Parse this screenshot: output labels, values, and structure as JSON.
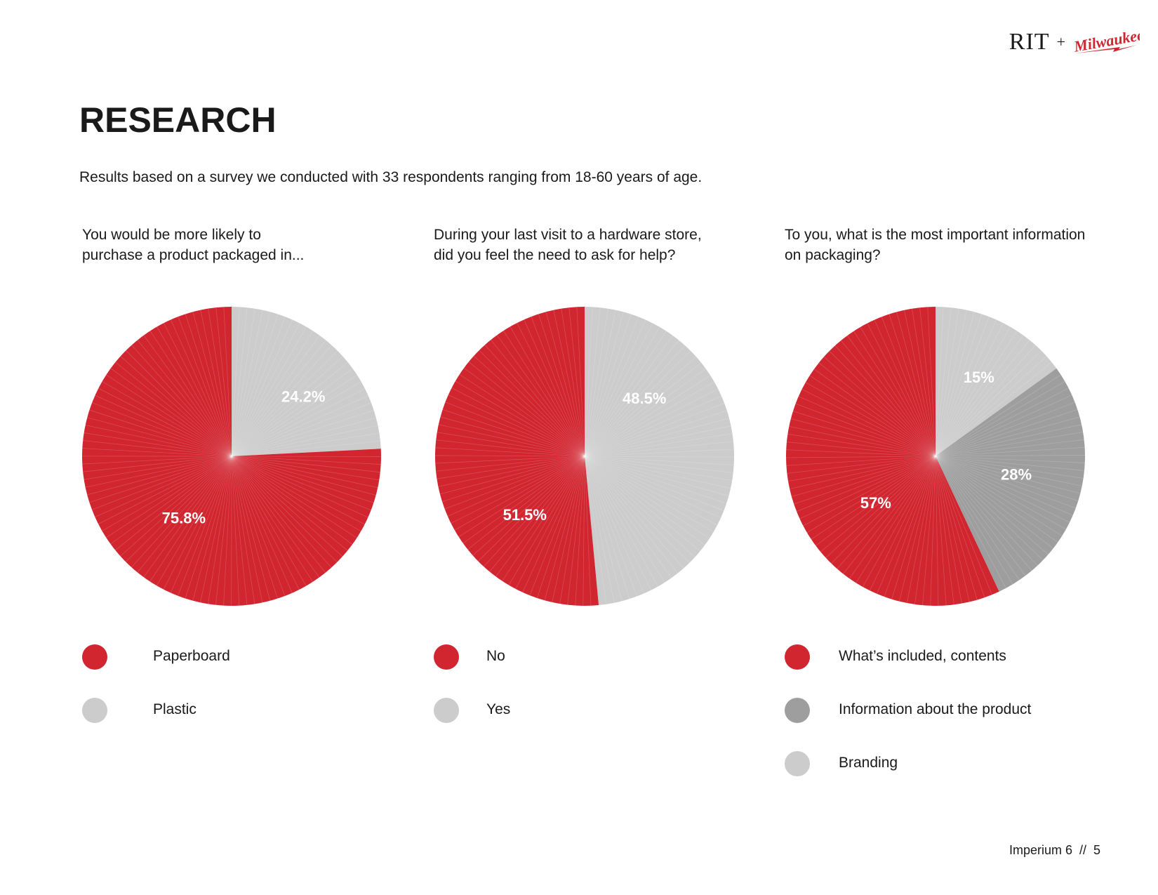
{
  "brand": {
    "left": "RIT",
    "plus": "+",
    "right": "Milwaukee"
  },
  "header": {
    "title": "RESEARCH",
    "subtitle": "Results based on a survey we conducted with 33 respondents ranging from 18-60 years of age."
  },
  "colors": {
    "red": "#d12530",
    "light_gray": "#cccccc",
    "dark_gray": "#9e9e9e"
  },
  "chart_data": [
    {
      "type": "pie",
      "title": "You would be more likely to purchase a product packaged in...",
      "title_lines": [
        "You would be more likely to",
        "purchase a product packaged in..."
      ],
      "start_angle_deg": 0,
      "slices": [
        {
          "label": "Plastic",
          "value": 24.2,
          "display": "24.2%",
          "color": "#cccccc"
        },
        {
          "label": "Paperboard",
          "value": 75.8,
          "display": "75.8%",
          "color": "#d12530"
        }
      ],
      "legend": [
        {
          "label": "Paperboard",
          "color": "#d12530"
        },
        {
          "label": "Plastic",
          "color": "#cccccc"
        }
      ]
    },
    {
      "type": "pie",
      "title": "During your last visit to a hardware store, did you feel the need to ask for help?",
      "title_lines": [
        "During your last visit to a hardware store,",
        "did you feel the need to ask for help?"
      ],
      "start_angle_deg": 0,
      "slices": [
        {
          "label": "Yes",
          "value": 48.5,
          "display": "48.5%",
          "color": "#cccccc"
        },
        {
          "label": "No",
          "value": 51.5,
          "display": "51.5%",
          "color": "#d12530"
        }
      ],
      "legend": [
        {
          "label": "No",
          "color": "#d12530"
        },
        {
          "label": "Yes",
          "color": "#cccccc"
        }
      ]
    },
    {
      "type": "pie",
      "title": "To you, what is the most important information on packaging?",
      "title_lines": [
        "To you, what is the most important information",
        "on packaging?"
      ],
      "start_angle_deg": 0,
      "slices": [
        {
          "label": "Branding",
          "value": 15,
          "display": "15%",
          "color": "#cccccc"
        },
        {
          "label": "Information about the product",
          "value": 28,
          "display": "28%",
          "color": "#9e9e9e"
        },
        {
          "label": "What’s included, contents",
          "value": 57,
          "display": "57%",
          "color": "#d12530"
        }
      ],
      "legend": [
        {
          "label": "What’s included, contents",
          "color": "#d12530"
        },
        {
          "label": "Information about the product",
          "color": "#9e9e9e"
        },
        {
          "label": "Branding",
          "color": "#cccccc"
        }
      ]
    }
  ],
  "footer": {
    "text": "Imperium 6  //  5"
  }
}
